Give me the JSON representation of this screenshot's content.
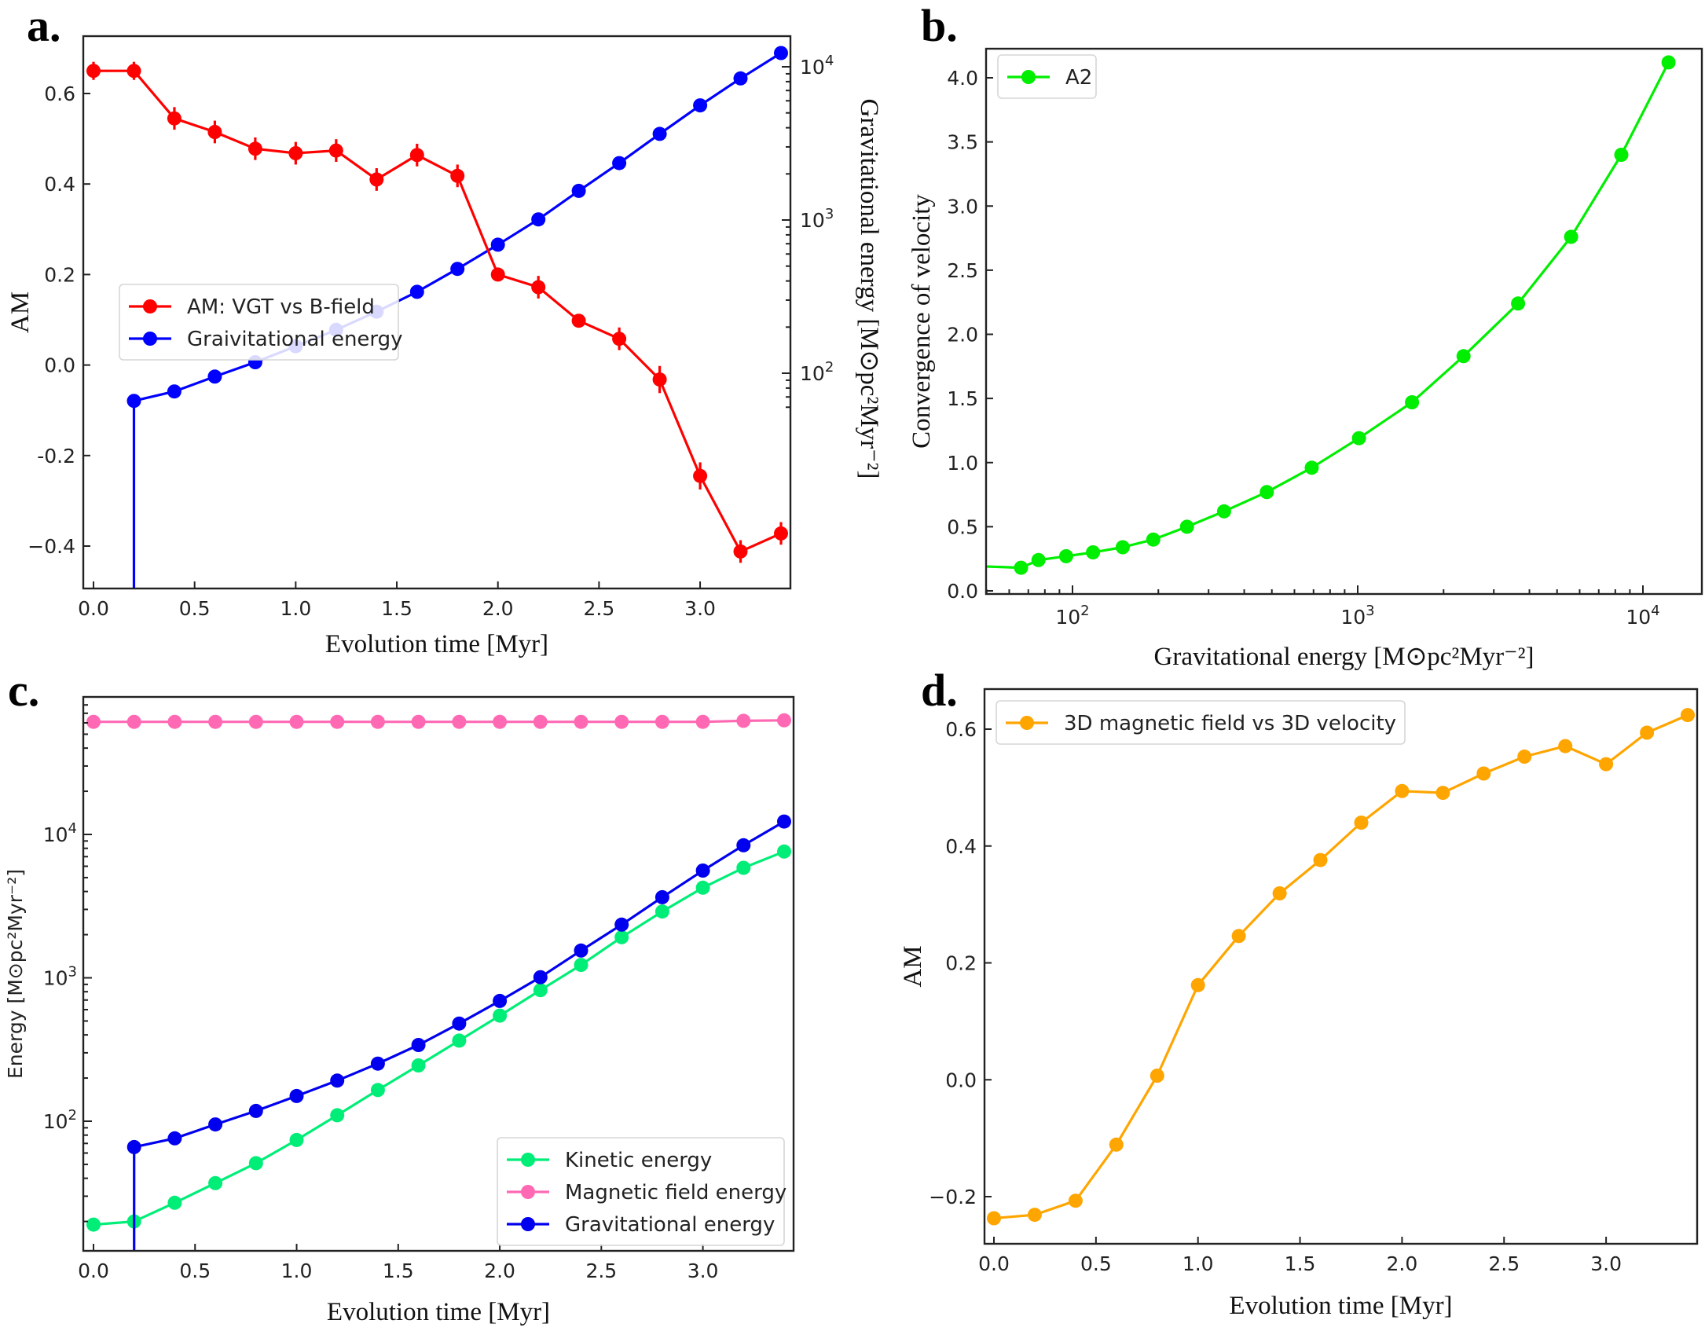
{
  "figure": {
    "panels": [
      {
        "id": "a",
        "letter": "a."
      },
      {
        "id": "b",
        "letter": "b."
      },
      {
        "id": "c",
        "letter": "c."
      },
      {
        "id": "d",
        "letter": "d."
      }
    ]
  },
  "chart_data": [
    {
      "panel": "a",
      "type": "line",
      "title": "",
      "xlabel": "Evolution time [Myr]",
      "ylabel": "AM",
      "y2label": "Gravitational energy [M⊙pc²Myr⁻²]",
      "xlim": [
        -0.07,
        3.45
      ],
      "ylim": [
        -0.5,
        0.73
      ],
      "y2lim": [
        50,
        14000
      ],
      "y2scale": "log",
      "xticks": [
        0.0,
        0.5,
        1.0,
        1.5,
        2.0,
        2.5,
        3.0
      ],
      "xtick_labels": [
        "0.0",
        "0.5",
        "1.0",
        "1.5",
        "2.0",
        "2.5",
        "3.0"
      ],
      "yticks": [
        0.6,
        0.4,
        0.2,
        0.0,
        -0.2,
        -0.4
      ],
      "ytick_labels": [
        "0.6",
        "0.4",
        "0.2",
        "0.0",
        "-0.2",
        "−0.4"
      ],
      "y2ticks": [
        100,
        1000,
        10000
      ],
      "y2tick_labels": [
        [
          "10",
          "2"
        ],
        [
          "10",
          "3"
        ],
        [
          "10",
          "4"
        ]
      ],
      "legend_position": "center-left",
      "grid": false,
      "x": [
        0.0,
        0.2,
        0.4,
        0.6,
        0.8,
        1.0,
        1.2,
        1.4,
        1.6,
        1.8,
        2.0,
        2.2,
        2.4,
        2.6,
        2.8,
        3.0,
        3.2,
        3.4
      ],
      "series": [
        {
          "name": "AM: VGT vs B-field",
          "axis": "left",
          "color": "#ff0000",
          "values": [
            0.65,
            0.65,
            0.545,
            0.515,
            0.478,
            0.468,
            0.474,
            0.41,
            0.464,
            0.418,
            0.2,
            0.172,
            0.098,
            0.058,
            -0.032,
            -0.245,
            -0.412,
            -0.372
          ],
          "errors": [
            0.02,
            0.02,
            0.025,
            0.025,
            0.025,
            0.025,
            0.025,
            0.025,
            0.025,
            0.025,
            0.015,
            0.025,
            0.015,
            0.025,
            0.03,
            0.03,
            0.025,
            0.025
          ]
        },
        {
          "name": "Graivitational energy",
          "axis": "right",
          "color": "#0000ff",
          "x": [
            0.2,
            0.4,
            0.6,
            0.8,
            1.0,
            1.2,
            1.4,
            1.6,
            1.8,
            2.0,
            2.2,
            2.4,
            2.6,
            2.8,
            3.0,
            3.2,
            3.4
          ],
          "values": [
            66,
            76,
            95,
            118,
            150,
            192,
            252,
            340,
            480,
            690,
            1010,
            1550,
            2350,
            3650,
            5600,
            8400,
            12300
          ],
          "drop_to_axis_at_first_point": true
        }
      ]
    },
    {
      "panel": "b",
      "type": "line",
      "title": "",
      "xlabel": "Gravitational energy [M⊙pc²Myr⁻²]",
      "ylabel": "Convergence of velocity",
      "xscale": "log",
      "xlim": [
        50,
        15000
      ],
      "ylim": [
        -0.03,
        4.32
      ],
      "xticks": [
        100,
        1000,
        10000
      ],
      "xtick_labels": [
        [
          "10",
          "2"
        ],
        [
          "10",
          "3"
        ],
        [
          "10",
          "4"
        ]
      ],
      "yticks": [
        0.0,
        0.5,
        1.0,
        1.5,
        2.0,
        2.5,
        3.0,
        3.5,
        4.0
      ],
      "ytick_labels": [
        "0.0",
        "0.5",
        "1.0",
        "1.5",
        "2.0",
        "2.5",
        "3.0",
        "3.5",
        "4.0"
      ],
      "legend_position": "top-left",
      "grid": false,
      "series": [
        {
          "name": "A2",
          "color": "#00ee00",
          "x": [
            66,
            76,
            95,
            118,
            150,
            192,
            252,
            340,
            480,
            690,
            1010,
            1550,
            2350,
            3650,
            5600,
            8400,
            12300
          ],
          "values": [
            0.18,
            0.24,
            0.27,
            0.3,
            0.34,
            0.4,
            0.5,
            0.62,
            0.77,
            0.96,
            1.19,
            1.47,
            1.83,
            2.24,
            2.76,
            3.4,
            4.12
          ],
          "extends_left_at": 0.19
        }
      ]
    },
    {
      "panel": "c",
      "type": "line",
      "title": "",
      "xlabel": "Evolution time [Myr]",
      "ylabel": "Energy [M⊙pc²Myr⁻²]",
      "yscale": "log",
      "xlim": [
        -0.07,
        3.45
      ],
      "ylim": [
        12.6,
        80000
      ],
      "xticks": [
        0.0,
        0.5,
        1.0,
        1.5,
        2.0,
        2.5,
        3.0
      ],
      "xtick_labels": [
        "0.0",
        "0.5",
        "1.0",
        "1.5",
        "2.0",
        "2.5",
        "3.0"
      ],
      "yticks": [
        100,
        1000,
        10000
      ],
      "ytick_labels": [
        [
          "10",
          "2"
        ],
        [
          "10",
          "3"
        ],
        [
          "10",
          "4"
        ]
      ],
      "legend_position": "bottom-right",
      "grid": false,
      "x": [
        0.0,
        0.2,
        0.4,
        0.6,
        0.8,
        1.0,
        1.2,
        1.4,
        1.6,
        1.8,
        2.0,
        2.2,
        2.4,
        2.6,
        2.8,
        3.0,
        3.2,
        3.4
      ],
      "series": [
        {
          "name": "Kinetic energy",
          "color": "#00ee77",
          "values": [
            19,
            20,
            27,
            37,
            51,
            74,
            110,
            165,
            245,
            365,
            545,
            820,
            1230,
            1920,
            2900,
            4250,
            5850,
            7600
          ]
        },
        {
          "name": "Magnetic field energy",
          "color": "#ff69b4",
          "values": [
            61000,
            61000,
            61000,
            61000,
            61000,
            61000,
            61000,
            61000,
            61000,
            61000,
            61000,
            61000,
            61000,
            61000,
            61000,
            61000,
            62000,
            62500
          ]
        },
        {
          "name": "Gravitational energy",
          "color": "#0000ee",
          "x": [
            0.2,
            0.4,
            0.6,
            0.8,
            1.0,
            1.2,
            1.4,
            1.6,
            1.8,
            2.0,
            2.2,
            2.4,
            2.6,
            2.8,
            3.0,
            3.2,
            3.4
          ],
          "values": [
            66,
            76,
            95,
            118,
            150,
            192,
            252,
            340,
            480,
            690,
            1010,
            1550,
            2350,
            3650,
            5600,
            8400,
            12300
          ],
          "drop_to_axis_at_first_point": true
        }
      ]
    },
    {
      "panel": "d",
      "type": "line",
      "title": "",
      "xlabel": "Evolution time [Myr]",
      "ylabel": "AM",
      "xlim": [
        -0.03,
        3.46
      ],
      "ylim": [
        -0.28,
        0.665
      ],
      "xticks": [
        0.0,
        0.5,
        1.0,
        1.5,
        2.0,
        2.5,
        3.0
      ],
      "xtick_labels": [
        "0.0",
        "0.5",
        "1.0",
        "1.5",
        "2.0",
        "2.5",
        "3.0"
      ],
      "yticks": [
        -0.2,
        0.0,
        0.2,
        0.4,
        0.6
      ],
      "ytick_labels": [
        "−0.2",
        "0.0",
        "0.2",
        "0.4",
        "0.6"
      ],
      "legend_position": "top-left",
      "grid": false,
      "x": [
        0.0,
        0.2,
        0.4,
        0.6,
        0.8,
        1.0,
        1.2,
        1.4,
        1.6,
        1.8,
        2.0,
        2.2,
        2.4,
        2.6,
        2.8,
        3.0,
        3.2,
        3.4
      ],
      "series": [
        {
          "name": "3D magnetic field vs 3D velocity",
          "color": "#ffa500",
          "values": [
            -0.237,
            -0.231,
            -0.207,
            -0.111,
            0.007,
            0.162,
            0.246,
            0.319,
            0.376,
            0.44,
            0.494,
            0.491,
            0.524,
            0.553,
            0.571,
            0.54,
            0.594,
            0.624
          ]
        }
      ]
    }
  ]
}
